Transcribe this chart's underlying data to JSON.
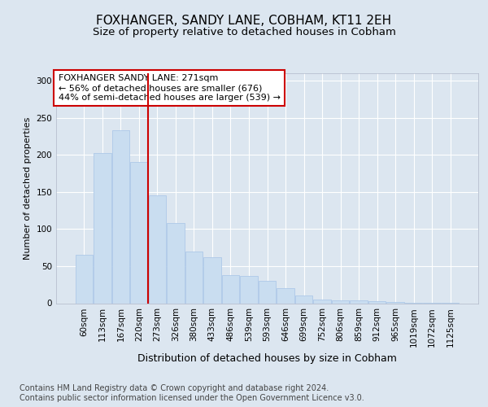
{
  "title": "FOXHANGER, SANDY LANE, COBHAM, KT11 2EH",
  "subtitle": "Size of property relative to detached houses in Cobham",
  "xlabel": "Distribution of detached houses by size in Cobham",
  "ylabel": "Number of detached properties",
  "categories": [
    "60sqm",
    "113sqm",
    "167sqm",
    "220sqm",
    "273sqm",
    "326sqm",
    "380sqm",
    "433sqm",
    "486sqm",
    "539sqm",
    "593sqm",
    "646sqm",
    "699sqm",
    "752sqm",
    "806sqm",
    "859sqm",
    "912sqm",
    "965sqm",
    "1019sqm",
    "1072sqm",
    "1125sqm"
  ],
  "values": [
    65,
    202,
    233,
    190,
    145,
    108,
    70,
    62,
    38,
    37,
    30,
    20,
    10,
    5,
    4,
    4,
    3,
    2,
    1,
    1,
    1
  ],
  "bar_color": "#c9ddf0",
  "bar_edge_color": "#adc8e8",
  "vline_x": 4,
  "vline_color": "#cc0000",
  "annotation_text": "FOXHANGER SANDY LANE: 271sqm\n← 56% of detached houses are smaller (676)\n44% of semi-detached houses are larger (539) →",
  "annotation_box_color": "#ffffff",
  "annotation_box_edge": "#cc0000",
  "ylim": [
    0,
    310
  ],
  "yticks": [
    0,
    50,
    100,
    150,
    200,
    250,
    300
  ],
  "fig_bg_color": "#dce6f0",
  "plot_bg": "#dce6f0",
  "footer": "Contains HM Land Registry data © Crown copyright and database right 2024.\nContains public sector information licensed under the Open Government Licence v3.0.",
  "title_fontsize": 11,
  "subtitle_fontsize": 9.5,
  "annotation_fontsize": 8,
  "footer_fontsize": 7,
  "tick_fontsize": 7.5,
  "ylabel_fontsize": 8,
  "xlabel_fontsize": 9
}
